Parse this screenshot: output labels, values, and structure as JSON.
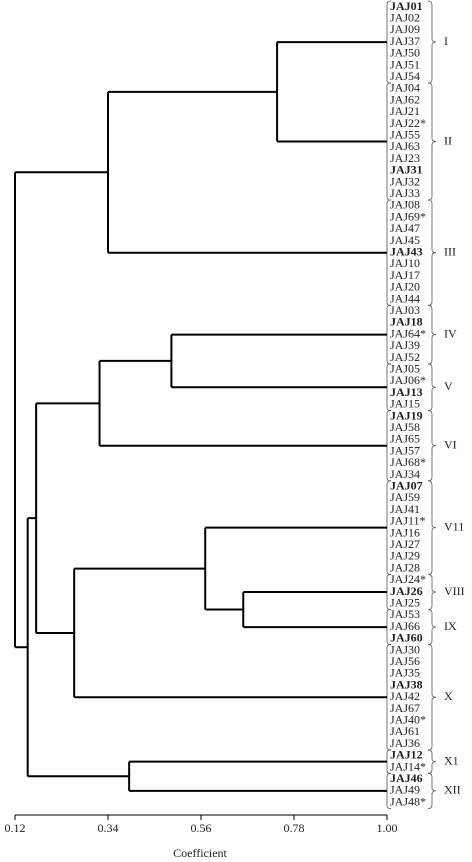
{
  "chart_data": {
    "type": "dendrogram",
    "x_label": "Coefficient",
    "xlim": [
      0.12,
      1
    ],
    "xticks": [
      0.12,
      0.34,
      0.56,
      0.78,
      {
        "value": 1,
        "label": "1.00"
      }
    ],
    "clusters": [
      {
        "name": "I",
        "leaves": [
          {
            "label": "JAJ01",
            "bold": true
          },
          {
            "label": "JAJ02"
          },
          {
            "label": "JAJ09"
          },
          {
            "label": "JAJ37"
          },
          {
            "label": "JAJ50"
          },
          {
            "label": "JAJ51"
          },
          {
            "label": "JAJ54"
          }
        ]
      },
      {
        "name": "II",
        "leaves": [
          {
            "label": "JAJ04"
          },
          {
            "label": "JAJ62"
          },
          {
            "label": "JAJ21"
          },
          {
            "label": "JAJ22*"
          },
          {
            "label": "JAJ55"
          },
          {
            "label": "JAJ63"
          },
          {
            "label": "JAJ23"
          },
          {
            "label": "JAJ31",
            "bold": true
          },
          {
            "label": "JAJ32"
          },
          {
            "label": "JAJ33"
          }
        ]
      },
      {
        "name": "III",
        "leaves": [
          {
            "label": "JAJ08"
          },
          {
            "label": "JAJ69*"
          },
          {
            "label": "JAJ47"
          },
          {
            "label": "JAJ45"
          },
          {
            "label": "JAJ43",
            "bold": true
          },
          {
            "label": "JAJ10"
          },
          {
            "label": "JAJ17"
          },
          {
            "label": "JAJ20"
          },
          {
            "label": "JAJ44"
          }
        ]
      },
      {
        "name": "IV",
        "leaves": [
          {
            "label": "JAJ03"
          },
          {
            "label": "JAJ18",
            "bold": true
          },
          {
            "label": "JAJ64*"
          },
          {
            "label": "JAJ39"
          },
          {
            "label": "JAJ52"
          }
        ]
      },
      {
        "name": "V",
        "leaves": [
          {
            "label": "JAJ05"
          },
          {
            "label": "JAJ06*"
          },
          {
            "label": "JAJ13",
            "bold": true
          },
          {
            "label": "JAJ15"
          }
        ]
      },
      {
        "name": "VI",
        "leaves": [
          {
            "label": "JAJ19",
            "bold": true
          },
          {
            "label": "JAJ58"
          },
          {
            "label": "JAJ65"
          },
          {
            "label": "JAJ57"
          },
          {
            "label": "JAJ68*"
          },
          {
            "label": "JAJ34"
          }
        ]
      },
      {
        "name": "V11",
        "leaves": [
          {
            "label": "JAJ07",
            "bold": true
          },
          {
            "label": "JAJ59"
          },
          {
            "label": "JAJ41"
          },
          {
            "label": "JAJ11*"
          },
          {
            "label": "JAJ16"
          },
          {
            "label": "JAJ27"
          },
          {
            "label": "JAJ29"
          },
          {
            "label": "JAJ28"
          }
        ]
      },
      {
        "name": "VIII",
        "leaves": [
          {
            "label": "JAJ24*"
          },
          {
            "label": "JAJ26",
            "bold": true
          },
          {
            "label": "JAJ25"
          }
        ]
      },
      {
        "name": "IX",
        "leaves": [
          {
            "label": "JAJ53"
          },
          {
            "label": "JAJ66"
          },
          {
            "label": "JAJ60",
            "bold": true
          }
        ]
      },
      {
        "name": "X",
        "leaves": [
          {
            "label": "JAJ30"
          },
          {
            "label": "JAJ56"
          },
          {
            "label": "JAJ35"
          },
          {
            "label": "JAJ38",
            "bold": true
          },
          {
            "label": "JAJ42"
          },
          {
            "label": "JAJ67"
          },
          {
            "label": "JAJ40*"
          },
          {
            "label": "JAJ61"
          },
          {
            "label": "JAJ36"
          }
        ]
      },
      {
        "name": "X1",
        "leaves": [
          {
            "label": "JAJ12",
            "bold": true
          },
          {
            "label": "JAJ14*"
          }
        ]
      },
      {
        "name": "XII",
        "leaves": [
          {
            "label": "JAJ46",
            "bold": true
          },
          {
            "label": "JAJ49"
          },
          {
            "label": "JAJ48*"
          }
        ]
      }
    ],
    "tree": {
      "height": 0.12,
      "children": [
        {
          "height": 0.34,
          "children": [
            {
              "height": 0.74,
              "children": [
                0,
                1
              ]
            },
            2
          ]
        },
        {
          "height": 0.15,
          "children": [
            {
              "height": 0.17,
              "children": [
                {
                  "height": 0.32,
                  "children": [
                    {
                      "height": 0.49,
                      "children": [
                        3,
                        4
                      ]
                    },
                    5
                  ]
                },
                {
                  "height": 0.26,
                  "children": [
                    {
                      "height": 0.57,
                      "children": [
                        6,
                        {
                          "height": 0.66,
                          "children": [
                            7,
                            8
                          ]
                        }
                      ]
                    },
                    9
                  ]
                }
              ]
            },
            {
              "height": 0.39,
              "children": [
                10,
                11
              ]
            }
          ]
        }
      ]
    }
  }
}
